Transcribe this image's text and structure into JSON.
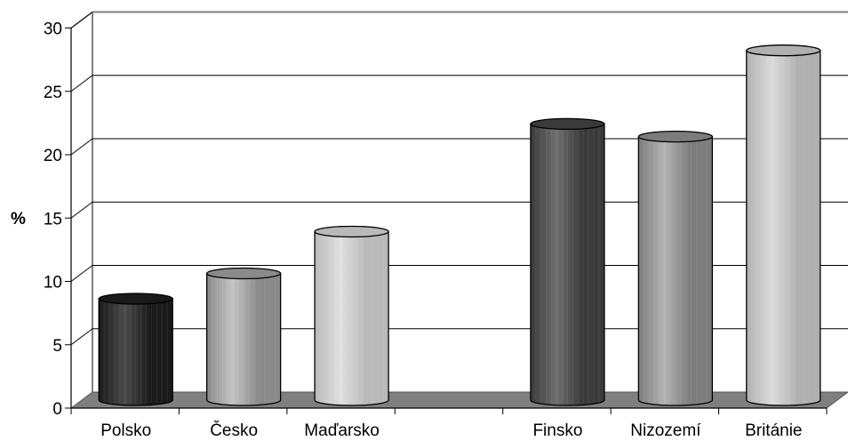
{
  "chart_data": {
    "type": "bar",
    "title": "",
    "xlabel": "",
    "ylabel": "%",
    "categories": [
      "Polsko",
      "Česko",
      "Maďarsko",
      "",
      "Finsko",
      "Nizozemí",
      "Británie"
    ],
    "values": [
      8,
      10,
      13.3,
      null,
      21.8,
      20.8,
      27.6
    ],
    "ylim": [
      0,
      30
    ],
    "yticks": [
      "0",
      "5",
      "10",
      "15",
      "20",
      "25",
      "30"
    ],
    "grid": true,
    "legend": "none",
    "style": "3d-cylinder",
    "bar_colors": [
      "#1a1a1a",
      "#8a8a8a",
      "#b9b9b9",
      "",
      "#3a3a3a",
      "#7c7c7c",
      "#b0b0b0"
    ],
    "bar_highlight_colors": [
      "#4a4a4a",
      "#c4c4c4",
      "#e0e0e0",
      "",
      "#6e6e6e",
      "#b3b3b3",
      "#dcdcdc"
    ],
    "floor_color": "#7f7f7f",
    "grid_color": "#000000"
  }
}
